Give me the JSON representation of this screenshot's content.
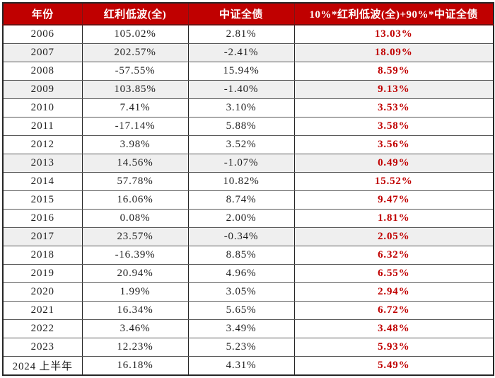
{
  "colors": {
    "header_bg": "#c00000",
    "header_text": "#ffffff",
    "accent_red": "#c00000",
    "body_text": "#1f1f1f",
    "stripe_bg": "#efefef",
    "border_dark": "#262626",
    "border_row": "#595959",
    "header_border": "#7e1414"
  },
  "chart_data": {
    "type": "table",
    "title": "",
    "columns": [
      "年份",
      "红利低波(全)",
      "中证全债",
      "10%*红利低波(全)+90%*中证全债"
    ],
    "rows": [
      {
        "year": "2006",
        "red_div_low_vol": "105.02%",
        "csi_aggregate_bond": "2.81%",
        "blend_10_90": "13.03%",
        "shaded": false
      },
      {
        "year": "2007",
        "red_div_low_vol": "202.57%",
        "csi_aggregate_bond": "-2.41%",
        "blend_10_90": "18.09%",
        "shaded": true
      },
      {
        "year": "2008",
        "red_div_low_vol": "-57.55%",
        "csi_aggregate_bond": "15.94%",
        "blend_10_90": "8.59%",
        "shaded": false
      },
      {
        "year": "2009",
        "red_div_low_vol": "103.85%",
        "csi_aggregate_bond": "-1.40%",
        "blend_10_90": "9.13%",
        "shaded": true
      },
      {
        "year": "2010",
        "red_div_low_vol": "7.41%",
        "csi_aggregate_bond": "3.10%",
        "blend_10_90": "3.53%",
        "shaded": false
      },
      {
        "year": "2011",
        "red_div_low_vol": "-17.14%",
        "csi_aggregate_bond": "5.88%",
        "blend_10_90": "3.58%",
        "shaded": false
      },
      {
        "year": "2012",
        "red_div_low_vol": "3.98%",
        "csi_aggregate_bond": "3.52%",
        "blend_10_90": "3.56%",
        "shaded": false
      },
      {
        "year": "2013",
        "red_div_low_vol": "14.56%",
        "csi_aggregate_bond": "-1.07%",
        "blend_10_90": "0.49%",
        "shaded": true
      },
      {
        "year": "2014",
        "red_div_low_vol": "57.78%",
        "csi_aggregate_bond": "10.82%",
        "blend_10_90": "15.52%",
        "shaded": false
      },
      {
        "year": "2015",
        "red_div_low_vol": "16.06%",
        "csi_aggregate_bond": "8.74%",
        "blend_10_90": "9.47%",
        "shaded": false
      },
      {
        "year": "2016",
        "red_div_low_vol": "0.08%",
        "csi_aggregate_bond": "2.00%",
        "blend_10_90": "1.81%",
        "shaded": false
      },
      {
        "year": "2017",
        "red_div_low_vol": "23.57%",
        "csi_aggregate_bond": "-0.34%",
        "blend_10_90": "2.05%",
        "shaded": true
      },
      {
        "year": "2018",
        "red_div_low_vol": "-16.39%",
        "csi_aggregate_bond": "8.85%",
        "blend_10_90": "6.32%",
        "shaded": false
      },
      {
        "year": "2019",
        "red_div_low_vol": "20.94%",
        "csi_aggregate_bond": "4.96%",
        "blend_10_90": "6.55%",
        "shaded": false
      },
      {
        "year": "2020",
        "red_div_low_vol": "1.99%",
        "csi_aggregate_bond": "3.05%",
        "blend_10_90": "2.94%",
        "shaded": false
      },
      {
        "year": "2021",
        "red_div_low_vol": "16.34%",
        "csi_aggregate_bond": "5.65%",
        "blend_10_90": "6.72%",
        "shaded": false
      },
      {
        "year": "2022",
        "red_div_low_vol": "3.46%",
        "csi_aggregate_bond": "3.49%",
        "blend_10_90": "3.48%",
        "shaded": false
      },
      {
        "year": "2023",
        "red_div_low_vol": "12.23%",
        "csi_aggregate_bond": "5.23%",
        "blend_10_90": "5.93%",
        "shaded": false
      },
      {
        "year": "2024 上半年",
        "red_div_low_vol": "16.18%",
        "csi_aggregate_bond": "4.31%",
        "blend_10_90": "5.49%",
        "shaded": false
      }
    ]
  }
}
